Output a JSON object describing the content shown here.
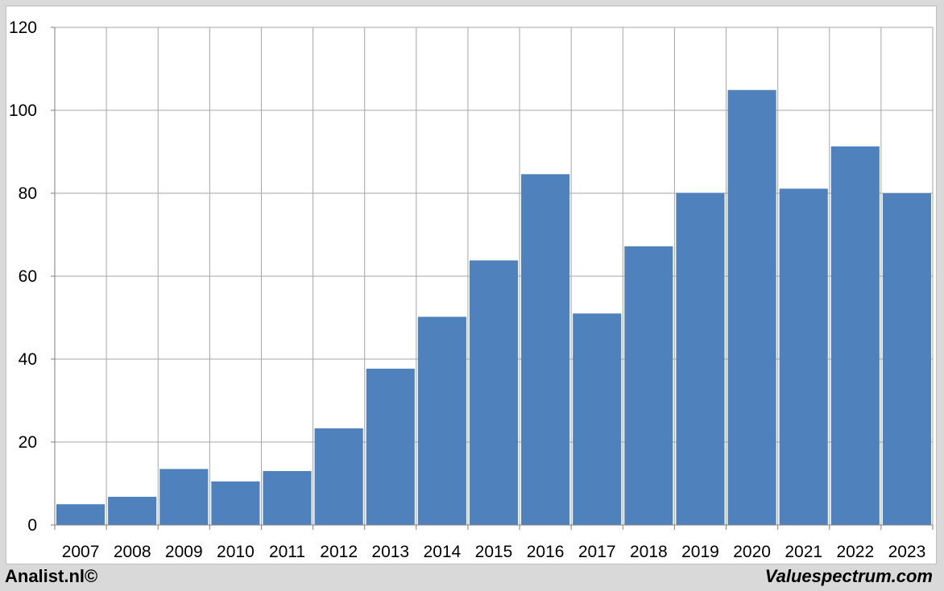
{
  "chart_data": {
    "type": "bar",
    "categories": [
      "2007",
      "2008",
      "2009",
      "2010",
      "2011",
      "2012",
      "2013",
      "2014",
      "2015",
      "2016",
      "2017",
      "2018",
      "2019",
      "2020",
      "2021",
      "2022",
      "2023"
    ],
    "values": [
      5.0,
      6.8,
      13.5,
      10.5,
      13.0,
      23.3,
      37.7,
      50.2,
      63.8,
      84.6,
      51.0,
      67.2,
      80.1,
      104.9,
      81.1,
      91.3,
      80.0
    ],
    "title": "",
    "xlabel": "",
    "ylabel": "",
    "ylim": [
      0,
      120
    ],
    "yticks": [
      0,
      20,
      40,
      60,
      80,
      100,
      120
    ],
    "grid": true,
    "bar_color": "#4f81bd",
    "grid_color": "#a6a6a6"
  },
  "footer": {
    "left": "Analist.nl©",
    "right": "Valuespectrum.com"
  }
}
